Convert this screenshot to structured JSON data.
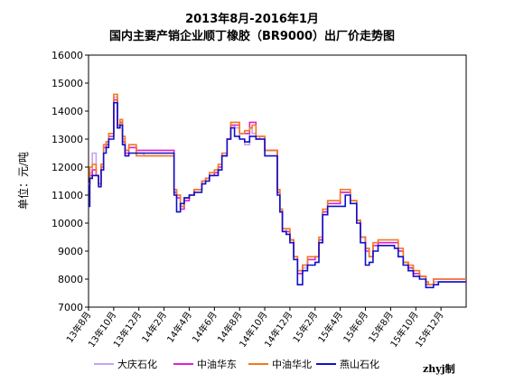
{
  "chart_data": {
    "type": "line",
    "title": "2013年8月-2016年1月",
    "subtitle": "国内主要产销企业顺丁橡胶（BR9000）出厂价走势图",
    "ylabel": "单位：元/吨",
    "credit": "zhyj制",
    "ylim": [
      7000,
      16000
    ],
    "ystep": 1000,
    "grid": false,
    "legend": "bottom",
    "x_tick_labels": [
      "13年8月",
      "13年10月",
      "13年12月",
      "14年2月",
      "14年4月",
      "14年6月",
      "14年8月",
      "14年10月",
      "14年12月",
      "15年2月",
      "15年4月",
      "15年6月",
      "15年8月",
      "15年10月",
      "15年12月"
    ],
    "x_range": [
      0,
      30
    ],
    "series": [
      {
        "name": "大庆石化",
        "color": "#C8A2F0",
        "x": [
          0,
          0.1,
          0.3,
          0.6,
          0.8,
          1.0,
          1.2,
          1.4,
          1.6,
          2.0,
          2.3,
          2.5,
          2.7,
          2.9,
          3.2,
          3.5,
          3.8,
          4.1,
          4.4,
          5.0,
          6.0,
          6.8,
          7.0,
          7.3,
          7.6,
          8.0,
          8.4,
          9.0,
          9.3,
          9.6,
          10.0,
          10.3,
          10.6,
          11.0,
          11.3,
          11.6,
          12.0,
          12.4,
          12.8,
          13.0,
          13.3,
          13.6,
          14.0,
          14.6,
          15.0,
          15.2,
          15.4,
          15.7,
          16.0,
          16.3,
          16.6,
          17.0,
          17.4,
          18.0,
          18.3,
          18.6,
          19.0,
          19.3,
          19.6,
          20.0,
          20.4,
          20.8,
          21.3,
          21.6,
          22.0,
          22.3,
          22.6,
          23.0,
          23.3,
          23.7,
          24.0,
          24.3,
          24.6,
          25.0,
          25.4,
          25.8,
          26.3,
          26.8,
          27.0,
          27.4,
          27.6,
          27.8,
          28.0,
          28.2,
          28.4,
          28.7,
          29.0,
          30.0
        ],
        "y": [
          11400,
          11800,
          12500,
          11700,
          11400,
          12100,
          12800,
          12900,
          13200,
          14500,
          13500,
          13600,
          13000,
          12600,
          12700,
          12700,
          12500,
          12500,
          12400,
          12400,
          12400,
          11200,
          11000,
          10600,
          10900,
          11000,
          11200,
          11500,
          11600,
          11700,
          11800,
          12000,
          12400,
          13000,
          13500,
          13400,
          13000,
          12800,
          13400,
          13200,
          13000,
          13100,
          12600,
          12600,
          11200,
          10500,
          9800,
          9700,
          9400,
          8800,
          8200,
          8400,
          8700,
          8800,
          9400,
          10400,
          10800,
          10800,
          10800,
          11100,
          11100,
          10800,
          10100,
          9500,
          9100,
          8800,
          9200,
          9300,
          9300,
          9300,
          9300,
          9300,
          9000,
          8600,
          8400,
          8200,
          8100,
          7900,
          7800,
          7900,
          7900,
          7900,
          7900,
          7900,
          7900,
          7900,
          7900,
          7900
        ]
      },
      {
        "name": "中油华东",
        "color": "#E020D0",
        "x": [
          0,
          0.1,
          0.3,
          0.6,
          0.8,
          1.0,
          1.2,
          1.4,
          1.6,
          2.0,
          2.3,
          2.5,
          2.7,
          2.9,
          3.2,
          3.5,
          3.8,
          4.1,
          4.4,
          5.0,
          6.0,
          6.8,
          7.0,
          7.3,
          7.6,
          8.0,
          8.4,
          9.0,
          9.3,
          9.6,
          10.0,
          10.3,
          10.6,
          11.0,
          11.3,
          11.6,
          12.0,
          12.4,
          12.8,
          13.0,
          13.3,
          13.6,
          14.0,
          14.6,
          15.0,
          15.2,
          15.4,
          15.7,
          16.0,
          16.3,
          16.6,
          17.0,
          17.4,
          18.0,
          18.3,
          18.6,
          19.0,
          19.3,
          19.6,
          20.0,
          20.4,
          20.8,
          21.3,
          21.6,
          22.0,
          22.3,
          22.6,
          23.0,
          23.3,
          23.7,
          24.0,
          24.3,
          24.6,
          25.0,
          25.4,
          25.8,
          26.3,
          26.8,
          27.0,
          27.4,
          27.6,
          27.8,
          28.0,
          28.2,
          28.4,
          28.7,
          29.0,
          30.0
        ],
        "y": [
          11400,
          11700,
          11900,
          11700,
          11400,
          12000,
          12700,
          12800,
          13100,
          14400,
          13400,
          13600,
          12900,
          12500,
          12700,
          12700,
          12600,
          12600,
          12600,
          12600,
          12600,
          11100,
          10900,
          10500,
          10800,
          11000,
          11200,
          11500,
          11600,
          11700,
          11800,
          12000,
          12400,
          13000,
          13500,
          13500,
          13200,
          13200,
          13600,
          13600,
          13000,
          13000,
          12600,
          12600,
          11100,
          10400,
          9700,
          9700,
          9400,
          8800,
          8200,
          8500,
          8700,
          8800,
          9400,
          10400,
          10700,
          10700,
          10700,
          11100,
          11100,
          10800,
          10100,
          9500,
          9000,
          8800,
          9200,
          9300,
          9300,
          9300,
          9300,
          9300,
          9000,
          8600,
          8400,
          8200,
          8100,
          7800,
          7800,
          8000,
          8000,
          8000,
          8000,
          8000,
          8000,
          8000,
          8000,
          8000
        ]
      },
      {
        "name": "中油华北",
        "color": "#F07A20",
        "x": [
          0,
          0.1,
          0.3,
          0.6,
          0.8,
          1.0,
          1.2,
          1.4,
          1.6,
          2.0,
          2.3,
          2.5,
          2.7,
          2.9,
          3.2,
          3.5,
          3.8,
          4.1,
          4.4,
          5.0,
          6.0,
          6.8,
          7.0,
          7.3,
          7.6,
          8.0,
          8.4,
          9.0,
          9.3,
          9.6,
          10.0,
          10.3,
          10.6,
          11.0,
          11.3,
          11.6,
          12.0,
          12.4,
          12.8,
          13.0,
          13.3,
          13.6,
          14.0,
          14.6,
          15.0,
          15.2,
          15.4,
          15.7,
          16.0,
          16.3,
          16.6,
          17.0,
          17.4,
          18.0,
          18.3,
          18.6,
          19.0,
          19.3,
          19.6,
          20.0,
          20.4,
          20.8,
          21.3,
          21.6,
          22.0,
          22.3,
          22.6,
          23.0,
          23.3,
          23.7,
          24.0,
          24.3,
          24.6,
          25.0,
          25.4,
          25.8,
          26.3,
          26.8,
          27.0,
          27.4,
          27.6,
          27.8,
          28.0,
          28.2,
          28.4,
          28.7,
          29.0,
          30.0
        ],
        "y": [
          11400,
          12000,
          12100,
          11700,
          11400,
          12100,
          12800,
          12900,
          13200,
          14600,
          13500,
          13700,
          13100,
          12600,
          12800,
          12800,
          12400,
          12400,
          12400,
          12400,
          12400,
          11200,
          11000,
          10600,
          10900,
          11000,
          11200,
          11500,
          11600,
          11800,
          11900,
          12100,
          12500,
          13000,
          13600,
          13600,
          13200,
          13300,
          13400,
          13500,
          13100,
          13100,
          12600,
          12600,
          11200,
          10500,
          9800,
          9800,
          9400,
          8800,
          8300,
          8500,
          8800,
          8800,
          9500,
          10500,
          10800,
          10800,
          10800,
          11200,
          11200,
          10800,
          10100,
          9500,
          9100,
          8800,
          9300,
          9400,
          9400,
          9400,
          9400,
          9400,
          9100,
          8600,
          8500,
          8300,
          8100,
          7900,
          7800,
          8000,
          8000,
          8000,
          8000,
          8000,
          8000,
          8000,
          8000,
          8000
        ]
      },
      {
        "name": "燕山石化",
        "color": "#1010C8",
        "x": [
          0,
          0.1,
          0.3,
          0.6,
          0.8,
          1.0,
          1.2,
          1.4,
          1.6,
          2.0,
          2.3,
          2.5,
          2.7,
          2.9,
          3.2,
          3.5,
          3.8,
          4.1,
          4.4,
          5.0,
          6.0,
          6.8,
          7.0,
          7.3,
          7.6,
          8.0,
          8.4,
          9.0,
          9.3,
          9.6,
          10.0,
          10.3,
          10.6,
          11.0,
          11.3,
          11.6,
          12.0,
          12.4,
          12.8,
          13.0,
          13.3,
          13.6,
          14.0,
          14.6,
          15.0,
          15.2,
          15.4,
          15.7,
          16.0,
          16.3,
          16.6,
          17.0,
          17.4,
          18.0,
          18.3,
          18.6,
          19.0,
          19.3,
          19.6,
          20.0,
          20.4,
          20.8,
          21.3,
          21.6,
          22.0,
          22.3,
          22.6,
          23.0,
          23.3,
          23.7,
          24.0,
          24.3,
          24.6,
          25.0,
          25.4,
          25.8,
          26.3,
          26.8,
          27.0,
          27.4,
          27.6,
          27.8,
          28.0,
          28.2,
          28.4,
          28.7,
          29.0,
          30.0
        ],
        "y": [
          10600,
          11600,
          11700,
          11700,
          11300,
          11900,
          12500,
          12700,
          13000,
          14300,
          13400,
          13500,
          12800,
          12400,
          12500,
          12500,
          12500,
          12500,
          12500,
          12500,
          12500,
          11000,
          10400,
          10700,
          10900,
          11000,
          11100,
          11400,
          11500,
          11700,
          11700,
          11900,
          12400,
          13000,
          13400,
          13100,
          13000,
          12900,
          13100,
          13100,
          13000,
          13000,
          12400,
          12400,
          11000,
          10400,
          9700,
          9600,
          9300,
          8700,
          7800,
          8300,
          8500,
          8600,
          9300,
          10300,
          10600,
          10600,
          10600,
          10600,
          11000,
          10700,
          10000,
          9300,
          8500,
          8600,
          9000,
          9200,
          9200,
          9200,
          9200,
          9100,
          8800,
          8500,
          8300,
          8100,
          8000,
          7700,
          7700,
          7800,
          7800,
          7900,
          7900,
          7900,
          7900,
          7900,
          7900,
          7900
        ]
      }
    ]
  }
}
